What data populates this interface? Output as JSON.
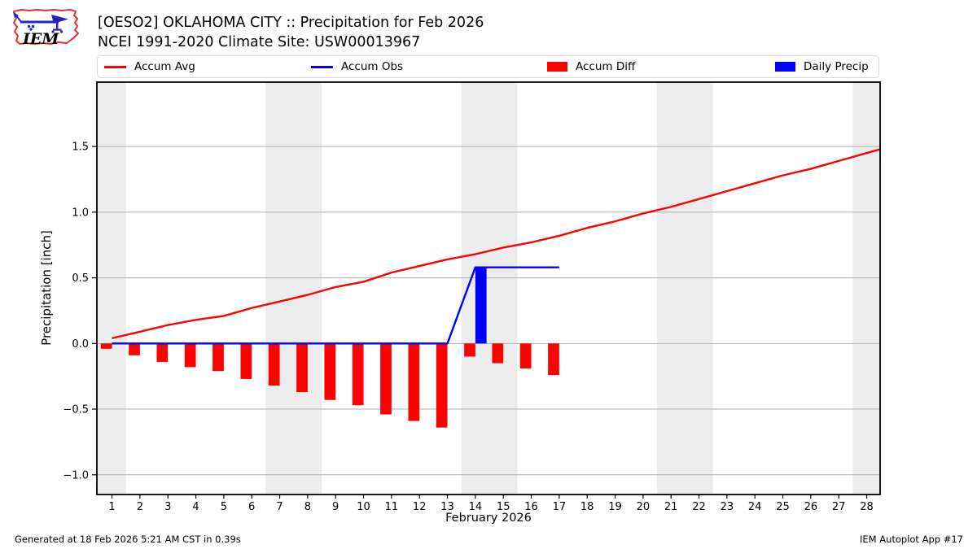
{
  "header": {
    "title_line1": "[OESO2] OKLAHOMA CITY :: Precipitation for Feb 2026",
    "title_line2": "NCEI 1991-2020 Climate Site: USW00013967",
    "logo_text": "IEM"
  },
  "legend": [
    {
      "label": "Accum Avg",
      "type": "line",
      "color": "#ff0000"
    },
    {
      "label": "Accum Obs",
      "type": "line",
      "color": "#0000ff"
    },
    {
      "label": "Accum Diff",
      "type": "patch",
      "color": "#ff0000"
    },
    {
      "label": "Daily Precip",
      "type": "patch",
      "color": "#0000ff"
    }
  ],
  "footer": {
    "left": "Generated at 18 Feb 2026 5:21 AM CST in 0.39s",
    "right": "IEM Autoplot App #17"
  },
  "chart_data": {
    "type": "line+bar",
    "xlabel": "February 2026",
    "ylabel": "Precipitation [inch]",
    "xlim": [
      0.46,
      28.48
    ],
    "ylim": [
      -1.15,
      1.99
    ],
    "grid": "horizontal",
    "legend_position": "top",
    "colors": {
      "accum_avg": "#ff0000",
      "accum_obs": "#0000ff",
      "accum_diff": "#ff0000",
      "daily_precip": "#0000ff",
      "gridline": "#b0b0b0",
      "weekend_band": "#ececec",
      "spine": "#000000"
    },
    "x_days": [
      1,
      2,
      3,
      4,
      5,
      6,
      7,
      8,
      9,
      10,
      11,
      12,
      13,
      14,
      15,
      16,
      17,
      18,
      19,
      20,
      21,
      22,
      23,
      24,
      25,
      26,
      27,
      28
    ],
    "y_ticks": [
      {
        "value": -1.0,
        "label": "−1.0"
      },
      {
        "value": -0.5,
        "label": "−0.5"
      },
      {
        "value": 0.0,
        "label": "0.0"
      },
      {
        "value": 0.5,
        "label": "0.5"
      },
      {
        "value": 1.0,
        "label": "1.0"
      },
      {
        "value": 1.5,
        "label": "1.5"
      }
    ],
    "weekend_bands_days": [
      [
        0.46,
        1.5
      ],
      [
        6.5,
        8.5
      ],
      [
        13.5,
        15.5
      ],
      [
        20.5,
        22.5
      ],
      [
        27.5,
        28.48
      ]
    ],
    "bar_width_days": 0.4,
    "series": [
      {
        "name": "Accum Avg",
        "type": "line",
        "color": "#ff0000",
        "extend_right": true,
        "x": [
          1,
          2,
          3,
          4,
          5,
          6,
          7,
          8,
          9,
          10,
          11,
          12,
          13,
          14,
          15,
          16,
          17,
          18,
          19,
          20,
          21,
          22,
          23,
          24,
          25,
          26,
          27,
          28
        ],
        "values": [
          0.04,
          0.09,
          0.14,
          0.18,
          0.21,
          0.27,
          0.32,
          0.37,
          0.43,
          0.47,
          0.54,
          0.59,
          0.64,
          0.68,
          0.73,
          0.77,
          0.82,
          0.88,
          0.93,
          0.99,
          1.04,
          1.1,
          1.16,
          1.22,
          1.28,
          1.33,
          1.39,
          1.45
        ]
      },
      {
        "name": "Accum Obs",
        "type": "line",
        "color": "#0000ff",
        "extend_right": false,
        "x": [
          1,
          2,
          3,
          4,
          5,
          6,
          7,
          8,
          9,
          10,
          11,
          12,
          13,
          14,
          15,
          16,
          17
        ],
        "values": [
          0,
          0,
          0,
          0,
          0,
          0,
          0,
          0,
          0,
          0,
          0,
          0,
          0,
          0.58,
          0.58,
          0.58,
          0.58
        ]
      },
      {
        "name": "Accum Diff",
        "type": "bar",
        "color": "#ff0000",
        "offset_days": -0.2,
        "x": [
          1,
          2,
          3,
          4,
          5,
          6,
          7,
          8,
          9,
          10,
          11,
          12,
          13,
          14,
          15,
          16,
          17
        ],
        "values": [
          -0.04,
          -0.09,
          -0.14,
          -0.18,
          -0.21,
          -0.27,
          -0.32,
          -0.37,
          -0.43,
          -0.47,
          -0.54,
          -0.59,
          -0.64,
          -0.1,
          -0.15,
          -0.19,
          -0.24
        ]
      },
      {
        "name": "Daily Precip",
        "type": "bar",
        "color": "#0000ff",
        "offset_days": 0.2,
        "x": [
          14
        ],
        "values": [
          0.58
        ]
      }
    ]
  }
}
